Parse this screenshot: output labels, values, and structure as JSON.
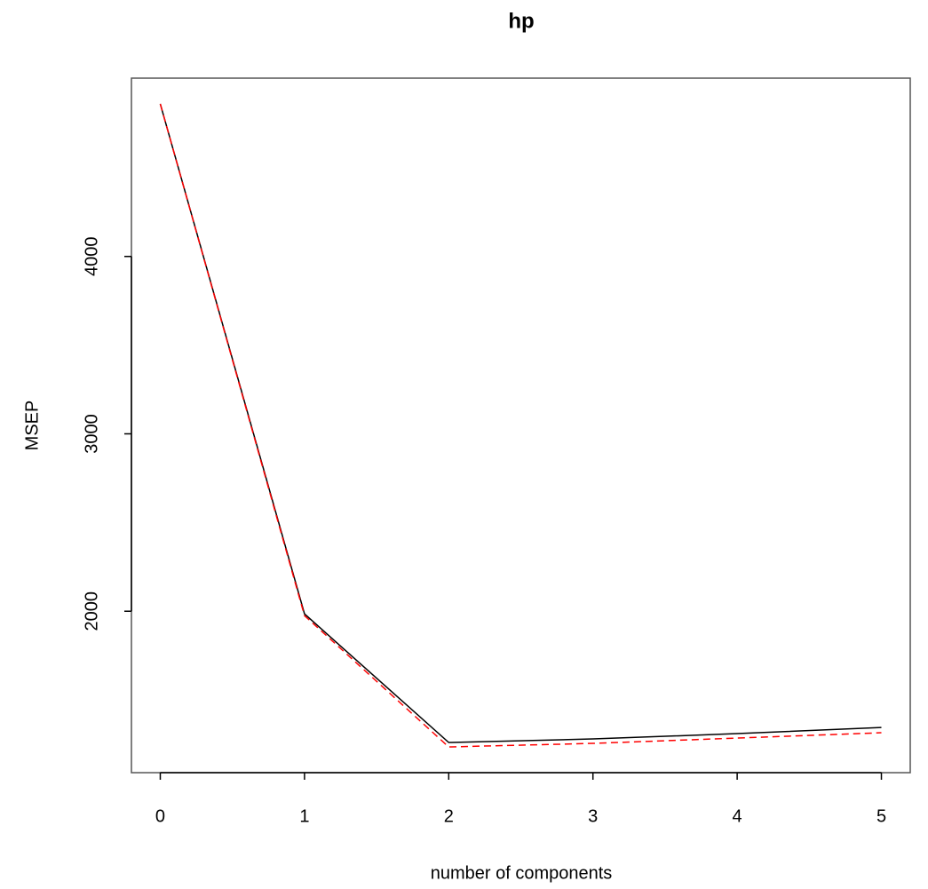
{
  "chart_data": {
    "type": "line",
    "title": "hp",
    "x_label": "number of components",
    "y_label": "MSEP",
    "x": [
      0,
      1,
      2,
      3,
      4,
      5
    ],
    "series": [
      {
        "color": "#000000",
        "linestyle": "solid",
        "values": [
          4860,
          1985,
          1260,
          1280,
          1310,
          1345
        ]
      },
      {
        "color": "#ff0000",
        "linestyle": "dashed",
        "values": [
          4860,
          1975,
          1235,
          1255,
          1285,
          1315
        ]
      }
    ],
    "xlim": [
      -0.2,
      5.2
    ],
    "xticks": [
      0,
      1,
      2,
      3,
      4,
      5
    ],
    "ylim": [
      1090,
      5005
    ],
    "yticks": [
      2000,
      3000,
      4000
    ]
  }
}
